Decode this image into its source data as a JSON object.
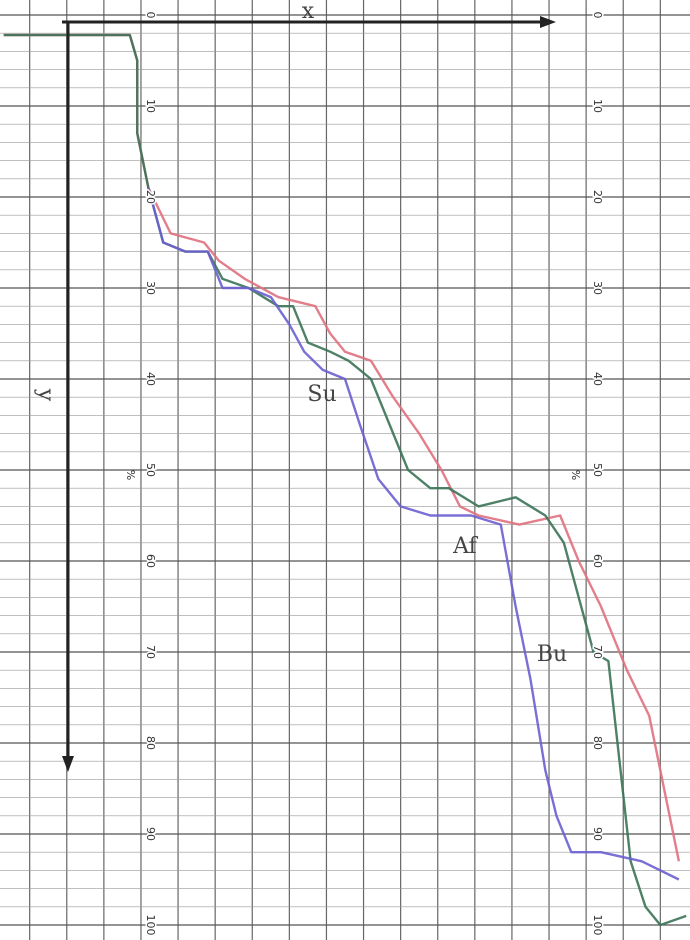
{
  "chart_data": {
    "type": "line",
    "axis_labels": {
      "x": "x",
      "y": "y"
    },
    "unit_labels": [
      "%",
      "%"
    ],
    "annotations": [
      "Su",
      "Af",
      "Bu"
    ],
    "xlim": [
      -3.8,
      14.8
    ],
    "ylim": [
      0,
      100
    ],
    "yticks": [
      0,
      10,
      20,
      30,
      40,
      50,
      60,
      70,
      80,
      90,
      100
    ],
    "grid": true,
    "series": [
      {
        "color": "#e0707e",
        "x": [
          -3.7,
          -0.3,
          -0.1,
          -0.1,
          0.2,
          0.8,
          1.7,
          2.1,
          2.8,
          3.7,
          4.7,
          5.1,
          5.5,
          6.2,
          6.8,
          7.5,
          8.1,
          8.6,
          9.1,
          10.2,
          11.3,
          11.8,
          12.4,
          13.1,
          13.7,
          14.1,
          14.5
        ],
        "values": [
          2.2,
          2.2,
          5,
          13,
          19,
          24,
          25,
          27,
          29,
          31,
          32,
          35,
          37,
          38,
          42,
          46,
          50,
          54,
          55,
          56,
          55,
          60,
          65,
          72,
          77,
          85,
          93
        ]
      },
      {
        "color": "#3b7358",
        "x": [
          -3.7,
          -0.3,
          -0.1,
          -0.1,
          0.2,
          0.6,
          1.2,
          1.8,
          2.2,
          2.9,
          3.7,
          4.1,
          4.5,
          5.1,
          5.6,
          6.2,
          6.7,
          7.2,
          7.8,
          8.3,
          9.1,
          10.1,
          10.9,
          11.4,
          11.8,
          12.2,
          12.6,
          12.9,
          13.2,
          13.6,
          14.0,
          14.7
        ],
        "values": [
          2.2,
          2.2,
          5,
          13,
          19,
          25,
          26,
          26,
          29,
          30,
          32,
          32,
          36,
          37,
          38,
          40,
          45,
          50,
          52,
          52,
          54,
          53,
          55,
          58,
          64,
          70,
          71,
          82,
          93,
          98,
          100,
          99
        ]
      },
      {
        "color": "#6b5fd0",
        "x": [
          0.2,
          0.6,
          1.2,
          1.8,
          2.2,
          2.9,
          3.5,
          4.0,
          4.4,
          4.9,
          5.5,
          5.9,
          6.4,
          7.0,
          7.8,
          8.9,
          9.7,
          10.1,
          10.5,
          10.9,
          11.2,
          11.6,
          12.4,
          13.5,
          14.5
        ],
        "values": [
          19,
          25,
          26,
          26,
          30,
          30,
          31,
          34,
          37,
          39,
          40,
          45,
          51,
          54,
          55,
          55,
          56,
          65,
          73,
          83,
          88,
          92,
          92,
          93,
          95
        ]
      }
    ]
  }
}
